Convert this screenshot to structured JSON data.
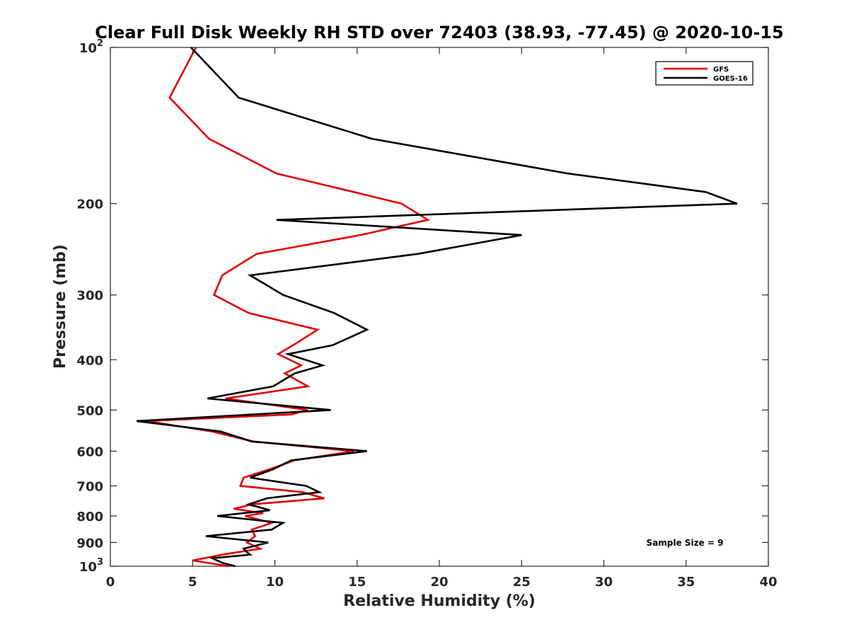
{
  "chart_data": {
    "type": "line",
    "title": "Clear Full Disk Weekly RH STD over 72403 (38.93, -77.45) @ 2020-10-15",
    "xlabel": "Relative Humidity (%)",
    "ylabel": "Pressure (mb)",
    "xlim": [
      0,
      40
    ],
    "ylim": [
      100,
      1000
    ],
    "y_scale": "log",
    "y_reversed": true,
    "grid": false,
    "legend_position": "top-right",
    "x_ticks": [
      "0",
      "5",
      "10",
      "15",
      "20",
      "25",
      "30",
      "35",
      "40"
    ],
    "x_tick_values": [
      0,
      5,
      10,
      15,
      20,
      25,
      30,
      35,
      40
    ],
    "y_ticks": [
      {
        "value": 100,
        "base": "10",
        "exp": "2"
      },
      {
        "value": 200,
        "label": "200"
      },
      {
        "value": 300,
        "label": "300"
      },
      {
        "value": 400,
        "label": "400"
      },
      {
        "value": 500,
        "label": "500"
      },
      {
        "value": 600,
        "label": "600"
      },
      {
        "value": 700,
        "label": "700"
      },
      {
        "value": 800,
        "label": "800"
      },
      {
        "value": 900,
        "label": "900"
      },
      {
        "value": 1000,
        "base": "10",
        "exp": "3"
      }
    ],
    "annotation": "Sample Size = 9",
    "series": [
      {
        "name": "GFS",
        "color": "#e00000",
        "points": [
          [
            5.2,
            100
          ],
          [
            3.6,
            125
          ],
          [
            6.0,
            150
          ],
          [
            10.1,
            175
          ],
          [
            14.8,
            190
          ],
          [
            17.7,
            200
          ],
          [
            19.3,
            215
          ],
          [
            15.2,
            230
          ],
          [
            8.9,
            250
          ],
          [
            6.8,
            275
          ],
          [
            6.3,
            300
          ],
          [
            8.4,
            325
          ],
          [
            12.6,
            350
          ],
          [
            11.1,
            375
          ],
          [
            10.2,
            390
          ],
          [
            11.6,
            410
          ],
          [
            10.6,
            425
          ],
          [
            12.0,
            450
          ],
          [
            7.0,
            475
          ],
          [
            12.0,
            500
          ],
          [
            11.0,
            510
          ],
          [
            2.2,
            525
          ],
          [
            6.2,
            550
          ],
          [
            8.7,
            575
          ],
          [
            14.8,
            600
          ],
          [
            11.2,
            625
          ],
          [
            9.7,
            650
          ],
          [
            8.1,
            675
          ],
          [
            7.9,
            700
          ],
          [
            11.7,
            720
          ],
          [
            13.0,
            740
          ],
          [
            8.6,
            760
          ],
          [
            7.5,
            775
          ],
          [
            9.3,
            790
          ],
          [
            8.2,
            800
          ],
          [
            9.8,
            825
          ],
          [
            8.6,
            850
          ],
          [
            8.8,
            875
          ],
          [
            8.3,
            900
          ],
          [
            9.1,
            925
          ],
          [
            6.8,
            950
          ],
          [
            5.0,
            975
          ],
          [
            7.2,
            1000
          ]
        ]
      },
      {
        "name": "GOES-16",
        "color": "#000000",
        "points": [
          [
            4.9,
            100
          ],
          [
            7.8,
            125
          ],
          [
            15.9,
            150
          ],
          [
            27.8,
            175
          ],
          [
            36.2,
            190
          ],
          [
            38.1,
            200
          ],
          [
            10.1,
            215
          ],
          [
            25.0,
            230
          ],
          [
            18.7,
            250
          ],
          [
            8.5,
            275
          ],
          [
            10.5,
            300
          ],
          [
            13.6,
            325
          ],
          [
            15.6,
            350
          ],
          [
            13.5,
            375
          ],
          [
            10.8,
            390
          ],
          [
            12.9,
            410
          ],
          [
            11.2,
            425
          ],
          [
            9.9,
            450
          ],
          [
            5.9,
            475
          ],
          [
            13.4,
            500
          ],
          [
            1.6,
            525
          ],
          [
            6.7,
            550
          ],
          [
            8.6,
            575
          ],
          [
            15.6,
            600
          ],
          [
            11.0,
            625
          ],
          [
            9.9,
            650
          ],
          [
            8.5,
            675
          ],
          [
            11.9,
            700
          ],
          [
            12.7,
            720
          ],
          [
            9.5,
            740
          ],
          [
            8.4,
            760
          ],
          [
            9.7,
            780
          ],
          [
            6.5,
            800
          ],
          [
            10.5,
            825
          ],
          [
            9.8,
            850
          ],
          [
            5.8,
            875
          ],
          [
            9.6,
            900
          ],
          [
            8.1,
            925
          ],
          [
            8.3,
            940
          ],
          [
            8.5,
            950
          ],
          [
            6.2,
            965
          ],
          [
            6.8,
            985
          ],
          [
            7.6,
            1000
          ]
        ]
      }
    ]
  }
}
